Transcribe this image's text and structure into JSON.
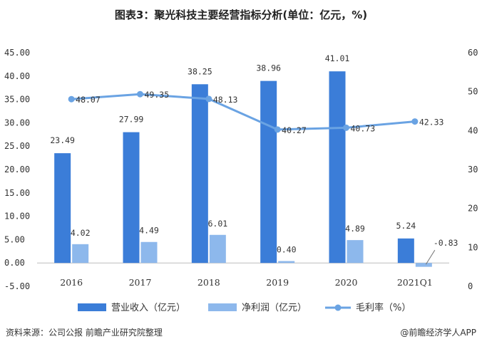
{
  "title": "图表3：聚光科技主要经营指标分析(单位：亿元，%)",
  "source": "资料来源：公司公报 前瞻产业研究院整理",
  "brand": "@前瞻经济学人APP",
  "colors": {
    "revenue": "#3b7dd8",
    "profit": "#8db8ec",
    "margin": "#6aa3e3"
  },
  "chart_data": {
    "type": "bar",
    "categories": [
      "2016",
      "2017",
      "2018",
      "2019",
      "2020",
      "2021Q1"
    ],
    "series": [
      {
        "name": "营业收入（亿元）",
        "type": "bar",
        "axis": "left",
        "values": [
          23.49,
          27.99,
          38.25,
          38.96,
          41.01,
          5.24
        ],
        "labels": [
          "23.49",
          "27.99",
          "38.25",
          "38.96",
          "41.01",
          "5.24"
        ]
      },
      {
        "name": "净利润（亿元）",
        "type": "bar",
        "axis": "left",
        "values": [
          4.02,
          4.49,
          6.01,
          0.4,
          4.89,
          -0.83
        ],
        "labels": [
          "4.02",
          "4.49",
          "6.01",
          "0.40",
          "4.89",
          "-0.83"
        ]
      },
      {
        "name": "毛利率（%）",
        "type": "line",
        "axis": "right",
        "values": [
          48.07,
          49.35,
          48.13,
          40.27,
          40.73,
          42.33
        ],
        "labels": [
          "48.07",
          "49.35",
          "48.13",
          "40.27",
          "40.73",
          "42.33"
        ]
      }
    ],
    "ylim_left": [
      -5,
      45
    ],
    "yticks_left": [
      "45.00",
      "40.00",
      "35.00",
      "30.00",
      "25.00",
      "20.00",
      "15.00",
      "10.00",
      "5.00",
      "0.00",
      "-5.00"
    ],
    "ylim_right": [
      0,
      60
    ],
    "yticks_right": [
      "60",
      "50",
      "40",
      "30",
      "20",
      "10",
      "0"
    ],
    "grid": false,
    "legend_position": "bottom"
  }
}
